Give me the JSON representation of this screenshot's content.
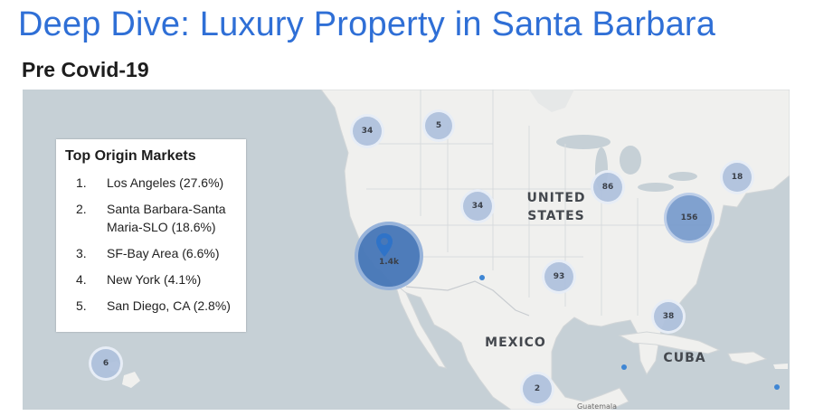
{
  "title": "Deep Dive: Luxury Property in Santa Barbara",
  "subtitle": "Pre Covid-19",
  "legend": {
    "title": "Top Origin Markets",
    "items": [
      {
        "rank": "1.",
        "label": "Los Angeles (27.6%)"
      },
      {
        "rank": "2.",
        "label": "Santa Barbara-Santa Maria-SLO (18.6%)"
      },
      {
        "rank": "3.",
        "label": "SF-Bay Area (6.6%)"
      },
      {
        "rank": "4.",
        "label": "New York (4.1%)"
      },
      {
        "rank": "5.",
        "label": "San Diego, CA (2.8%)"
      }
    ]
  },
  "map_labels": {
    "united_states_line1": "UNITED",
    "united_states_line2": "STATES",
    "mexico": "MEXICO",
    "cuba": "CUBA",
    "guatemala": "Guatemala"
  },
  "clusters": {
    "pacific_nw": "34",
    "montana": "5",
    "colorado": "34",
    "chicago": "86",
    "boston": "18",
    "ny_dc": "156",
    "los_angeles": "1.4k",
    "texas": "93",
    "florida": "38",
    "hawaii": "6",
    "mexico_south": "2"
  },
  "colors": {
    "title": "#2f6fd6",
    "water": "#c6d0d6",
    "land": "#f0f0ee",
    "cluster_big": "#4878b8",
    "cluster_small": "#afc1dc",
    "point": "#3f86d4"
  }
}
